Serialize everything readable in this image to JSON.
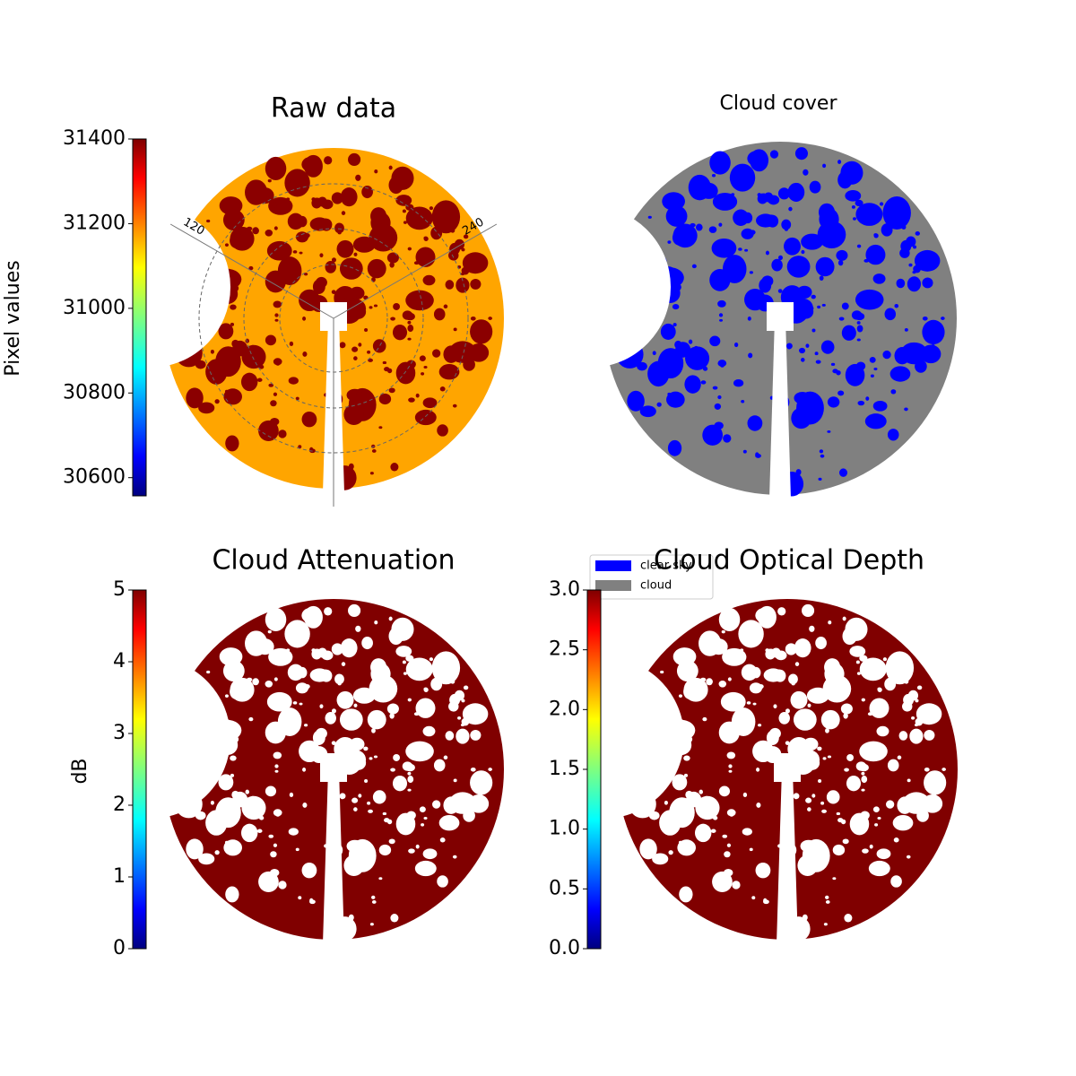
{
  "chart_data": [
    {
      "type": "image",
      "title": "Raw data",
      "colorbar_label": "Pixel values",
      "colormap": "jet",
      "clim": [
        30557,
        31400
      ],
      "cticks": [
        30600,
        30800,
        31000,
        31200,
        31400
      ],
      "polar_grid": true,
      "polar_labels": [
        "120",
        "240"
      ],
      "base_color": "#ffa500",
      "blob_color": "#8b0000"
    },
    {
      "type": "image",
      "title": "Cloud cover",
      "base_color": "#808080",
      "blob_color": "#0000ff",
      "series": [
        {
          "name": "clear sky",
          "color": "#0000ff"
        },
        {
          "name": "cloud",
          "color": "#808080"
        }
      ]
    },
    {
      "type": "image",
      "title": "Cloud Attenuation",
      "colorbar_label": "dB",
      "colormap": "jet",
      "clim": [
        0,
        5
      ],
      "cticks": [
        0,
        1,
        2,
        3,
        4,
        5
      ],
      "base_color": "#800000",
      "blob_color": "#ffffff"
    },
    {
      "type": "image",
      "title": "Cloud Optical Depth",
      "colormap": "jet",
      "clim": [
        0,
        3
      ],
      "cticks": [
        {
          "value": 0,
          "label": "0.0"
        },
        {
          "value": 0.5,
          "label": "0.5"
        },
        {
          "value": 1,
          "label": "1.0"
        },
        {
          "value": 1.5,
          "label": "1.5"
        },
        {
          "value": 2,
          "label": "2.0"
        },
        {
          "value": 2.5,
          "label": "2.5"
        },
        {
          "value": 3,
          "label": "3.0"
        }
      ],
      "base_color": "#800000",
      "blob_color": "#ffffff"
    }
  ]
}
